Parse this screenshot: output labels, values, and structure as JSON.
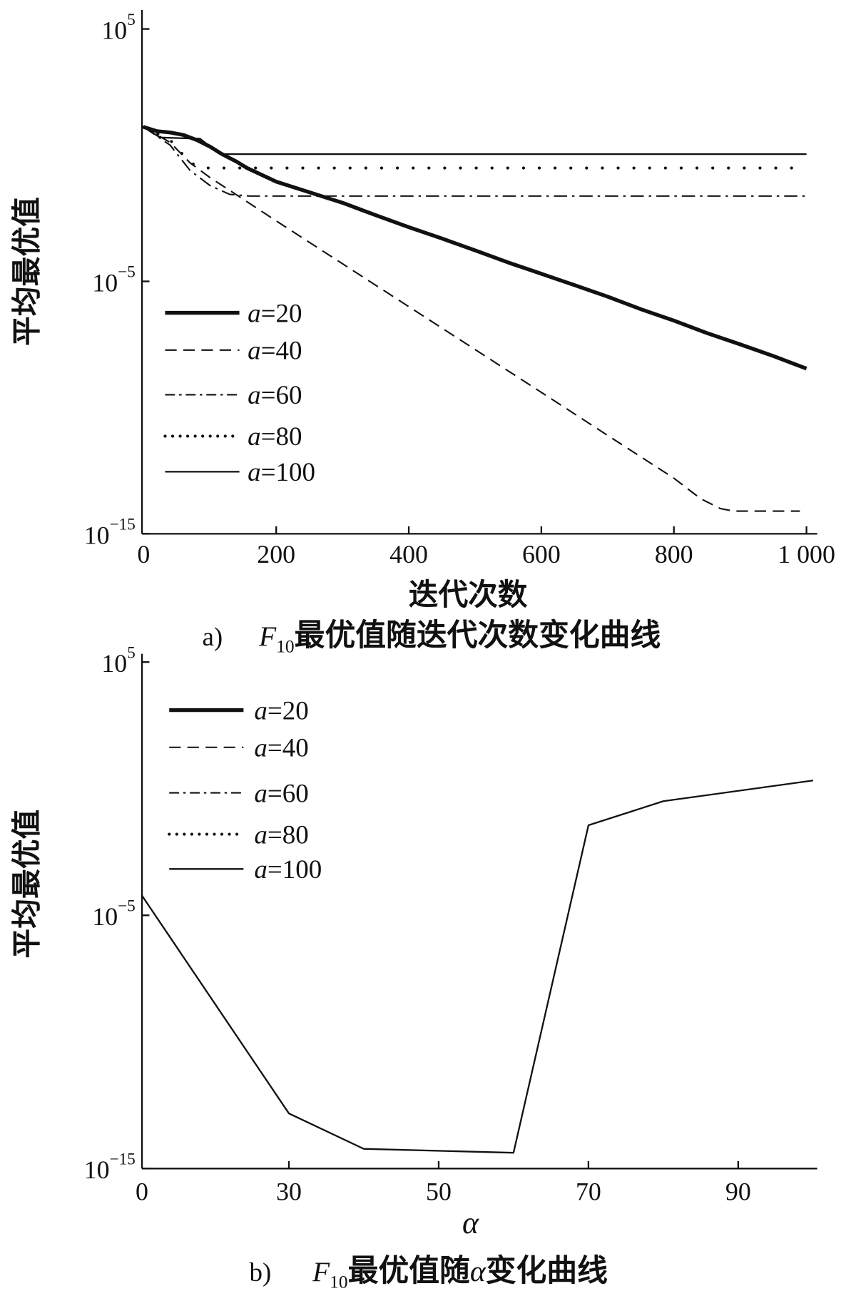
{
  "chart_data": [
    {
      "type": "line",
      "caption": {
        "label": "a)",
        "symbol": "F",
        "subscript": "10",
        "text": "最优值随迭代次数变化曲线"
      },
      "xlabel": "迭代次数",
      "ylabel": "平均最优值",
      "xlim": [
        0,
        1000
      ],
      "ylim": [
        1e-15,
        100000.0
      ],
      "yscale": "log",
      "grid": false,
      "xticks": [
        0,
        200,
        400,
        600,
        800,
        1000
      ],
      "xtick_labels": [
        "0",
        "200",
        "400",
        "600",
        "800",
        "1 000"
      ],
      "yticks": [
        100000.0,
        1e-05,
        1e-15
      ],
      "ytick_labels": [
        {
          "base": "10",
          "exp": "5"
        },
        {
          "base": "10",
          "exp": "−5"
        },
        {
          "base": "10",
          "exp": "−15"
        }
      ],
      "legend_position": "left",
      "series": [
        {
          "name": "a=20",
          "style": "thick-solid",
          "x": [
            0,
            20,
            40,
            60,
            80,
            100,
            118,
            140,
            156,
            200,
            268,
            300,
            350,
            400,
            450,
            500,
            550,
            600,
            650,
            700,
            750,
            800,
            850,
            900,
            950,
            1000
          ],
          "y": [
            13,
            8.9,
            7.9,
            6.3,
            4.0,
            2.2,
            1.1,
            0.56,
            0.31,
            0.089,
            0.024,
            0.013,
            0.0042,
            0.0014,
            0.0005,
            0.00017,
            5.6e-05,
            2e-05,
            7.1e-06,
            2.5e-06,
            7.9e-07,
            2.8e-07,
            8.9e-08,
            3.2e-08,
            1.1e-08,
            3.5e-09
          ]
        },
        {
          "name": "a=40",
          "style": "dashed",
          "x": [
            0,
            40,
            70,
            100,
            130,
            200,
            300,
            400,
            500,
            600,
            700,
            800,
            840,
            870,
            890,
            990
          ],
          "y": [
            13,
            3.2,
            0.5,
            0.13,
            0.04,
            0.0025,
            5e-05,
            1e-06,
            2e-08,
            4e-10,
            7.9e-12,
            1.6e-13,
            2.5e-14,
            1e-14,
            7.9e-15,
            7.9e-15
          ]
        },
        {
          "name": "a=60",
          "style": "dash-dot",
          "x": [
            0,
            40,
            70,
            100,
            130,
            160,
            1000
          ],
          "y": [
            13,
            2.5,
            0.25,
            0.063,
            0.028,
            0.024,
            0.024
          ]
        },
        {
          "name": "a=80",
          "style": "dotted",
          "x": [
            0,
            40,
            70,
            90,
            980
          ],
          "y": [
            13,
            4.0,
            0.5,
            0.31,
            0.31
          ]
        },
        {
          "name": "a=100",
          "style": "solid",
          "x": [
            0,
            25,
            85,
            115,
            1000
          ],
          "y": [
            13,
            5.0,
            4.5,
            1.1,
            1.1
          ]
        }
      ]
    },
    {
      "type": "line",
      "caption": {
        "label": "b)",
        "symbol": "F",
        "subscript": "10",
        "text": "最优值随",
        "symbol2": "α",
        "text2": "变化曲线"
      },
      "xlabel": "α",
      "ylabel": "平均最优值",
      "xlim": [
        0,
        100
      ],
      "ylim": [
        1e-15,
        100000.0
      ],
      "yscale": "log",
      "grid": false,
      "xticks": [
        0,
        30,
        50,
        70,
        90
      ],
      "xtick_labels": [
        "0",
        "30",
        "50",
        "70",
        "90"
      ],
      "yticks": [
        100000.0,
        1e-05,
        1e-15
      ],
      "ytick_labels": [
        {
          "base": "10",
          "exp": "5"
        },
        {
          "base": "10",
          "exp": "−5"
        },
        {
          "base": "10",
          "exp": "−15"
        }
      ],
      "legend_position": "top-left",
      "legend_entries": [
        {
          "label": "a=20",
          "style": "thick-solid"
        },
        {
          "label": "a=40",
          "style": "dashed"
        },
        {
          "label": "a=60",
          "style": "dash-dot"
        },
        {
          "label": "a=80",
          "style": "dotted"
        },
        {
          "label": "a=100",
          "style": "solid"
        }
      ],
      "series": [
        {
          "style": "solid",
          "x": [
            0,
            30,
            40,
            60,
            70,
            80,
            100
          ],
          "y": [
            6e-05,
            1.5e-13,
            6e-15,
            4.2e-15,
            0.036,
            0.32,
            2.1
          ]
        }
      ]
    }
  ]
}
